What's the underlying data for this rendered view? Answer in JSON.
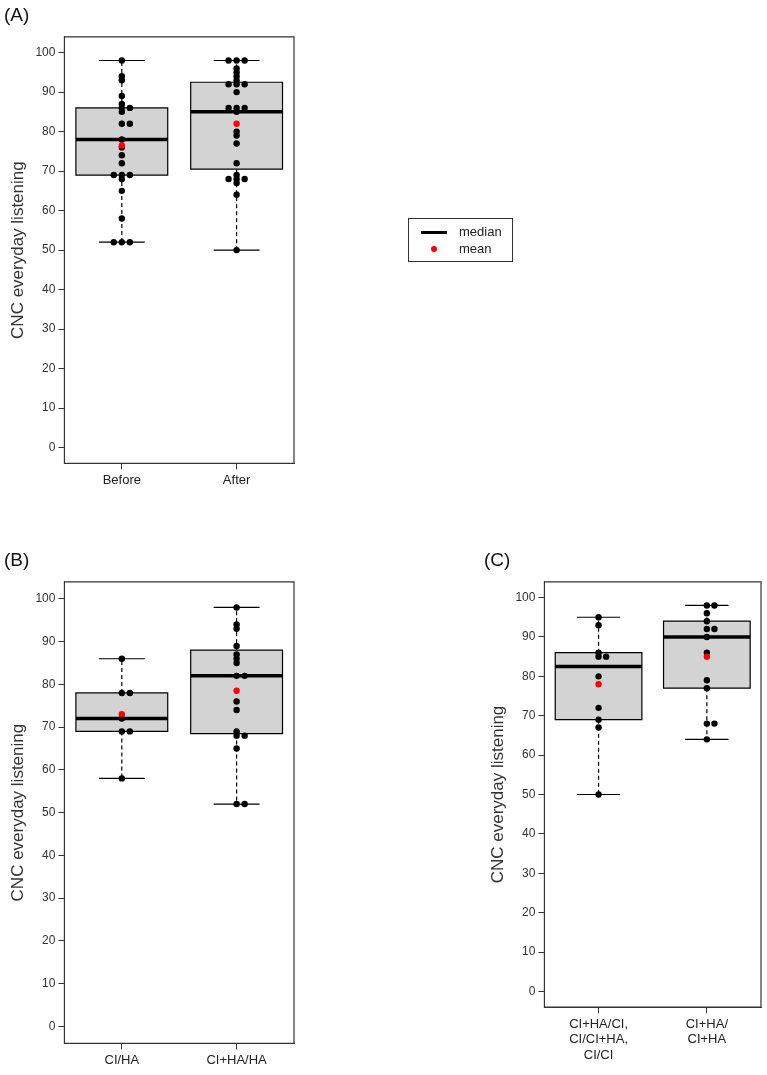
{
  "chart_data": [
    {
      "type": "box",
      "title": "(A)",
      "ylabel": "CNC everyday listening",
      "categories": [
        "Before",
        "After"
      ],
      "ylim": [
        -4,
        104
      ],
      "yticks": [
        0,
        10,
        20,
        30,
        40,
        50,
        60,
        70,
        80,
        90,
        100
      ],
      "legend": "right",
      "marker": "circle",
      "series": [
        {
          "type": "box",
          "name": "median",
          "color": "#d3d3d3",
          "boxes": [
            {
              "low": 52,
              "q1": 69,
              "median": 78,
              "q3": 86,
              "high": 98
            },
            {
              "low": 50,
              "q1": 70.5,
              "median": 85,
              "q3": 92.5,
              "high": 98
            }
          ]
        },
        {
          "type": "scatter",
          "color": "#000000",
          "x": [
            "Before",
            "Before",
            "Before",
            "Before",
            "Before",
            "Before",
            "Before",
            "Before",
            "Before",
            "Before",
            "Before",
            "Before",
            "Before",
            "Before",
            "Before",
            "Before",
            "Before",
            "Before",
            "Before",
            "Before",
            "Before",
            "Before",
            "Before",
            "After",
            "After",
            "After",
            "After",
            "After",
            "After",
            "After",
            "After",
            "After",
            "After",
            "After",
            "After",
            "After",
            "After",
            "After",
            "After",
            "After",
            "After",
            "After",
            "After",
            "After",
            "After",
            "After",
            "After",
            "After",
            "After"
          ],
          "values": [
            98,
            94,
            93,
            89,
            87,
            86,
            86,
            85,
            82,
            82,
            78,
            76,
            74,
            72,
            69,
            69,
            69,
            68,
            65,
            58,
            52,
            52,
            52,
            98,
            98,
            98,
            96,
            95,
            94,
            93,
            92,
            92,
            92,
            90,
            86,
            86,
            86,
            85,
            80,
            79,
            77,
            72,
            69,
            68,
            68,
            68,
            67,
            64,
            50
          ]
        },
        {
          "type": "scatter",
          "name": "mean",
          "color": "#ff0000",
          "x": [
            "Before",
            "After"
          ],
          "values": [
            76.5,
            82
          ]
        }
      ]
    },
    {
      "type": "box",
      "title": "(B)",
      "ylabel": "CNC everyday listening",
      "categories": [
        "CI/HA",
        "CI+HA/HA"
      ],
      "ylim": [
        -4,
        104
      ],
      "yticks": [
        0,
        10,
        20,
        30,
        40,
        50,
        60,
        70,
        80,
        90,
        100
      ],
      "marker": "circle",
      "series": [
        {
          "type": "box",
          "color": "#d3d3d3",
          "boxes": [
            {
              "low": 58,
              "q1": 69,
              "median": 72,
              "q3": 78,
              "high": 86
            },
            {
              "low": 52,
              "q1": 68.5,
              "median": 82,
              "q3": 88,
              "high": 98
            }
          ]
        },
        {
          "type": "scatter",
          "color": "#000000",
          "x": [
            "CI/HA",
            "CI/HA",
            "CI/HA",
            "CI/HA",
            "CI/HA",
            "CI/HA",
            "CI/HA",
            "CI+HA/HA",
            "CI+HA/HA",
            "CI+HA/HA",
            "CI+HA/HA",
            "CI+HA/HA",
            "CI+HA/HA",
            "CI+HA/HA",
            "CI+HA/HA",
            "CI+HA/HA",
            "CI+HA/HA",
            "CI+HA/HA",
            "CI+HA/HA",
            "CI+HA/HA",
            "CI+HA/HA",
            "CI+HA/HA",
            "CI+HA/HA",
            "CI+HA/HA"
          ],
          "values": [
            86,
            78,
            78,
            72,
            69,
            69,
            58,
            98,
            94,
            93,
            89,
            87,
            86,
            85,
            82,
            82,
            76,
            74,
            69,
            68,
            68,
            65,
            52,
            52
          ]
        },
        {
          "type": "scatter",
          "color": "#ff0000",
          "x": [
            "CI/HA",
            "CI+HA/HA"
          ],
          "values": [
            73,
            78.5
          ]
        }
      ]
    },
    {
      "type": "box",
      "title": "(C)",
      "ylabel": "CNC everyday listening",
      "categories": [
        "CI+HA/CI,\nCI/CI+HA,\nCI/CI",
        "CI+HA/\nCI+HA"
      ],
      "ylim": [
        -4,
        104
      ],
      "yticks": [
        0,
        10,
        20,
        30,
        40,
        50,
        60,
        70,
        80,
        90,
        100
      ],
      "marker": "circle",
      "series": [
        {
          "type": "box",
          "color": "#d3d3d3",
          "boxes": [
            {
              "low": 50,
              "q1": 69,
              "median": 82.5,
              "q3": 86,
              "high": 95
            },
            {
              "low": 64,
              "q1": 77,
              "median": 90,
              "q3": 94,
              "high": 98
            }
          ]
        },
        {
          "type": "scatter",
          "color": "#000000",
          "x": [
            "CI+HA/CI,\nCI/CI+HA,\nCI/CI",
            "CI+HA/CI,\nCI/CI+HA,\nCI/CI",
            "CI+HA/CI,\nCI/CI+HA,\nCI/CI",
            "CI+HA/CI,\nCI/CI+HA,\nCI/CI",
            "CI+HA/CI,\nCI/CI+HA,\nCI/CI",
            "CI+HA/CI,\nCI/CI+HA,\nCI/CI",
            "CI+HA/CI,\nCI/CI+HA,\nCI/CI",
            "CI+HA/CI,\nCI/CI+HA,\nCI/CI",
            "CI+HA/CI,\nCI/CI+HA,\nCI/CI",
            "CI+HA/CI,\nCI/CI+HA,\nCI/CI",
            "CI+HA/\nCI+HA",
            "CI+HA/\nCI+HA",
            "CI+HA/\nCI+HA",
            "CI+HA/\nCI+HA",
            "CI+HA/\nCI+HA",
            "CI+HA/\nCI+HA",
            "CI+HA/\nCI+HA",
            "CI+HA/\nCI+HA",
            "CI+HA/\nCI+HA",
            "CI+HA/\nCI+HA",
            "CI+HA/\nCI+HA",
            "CI+HA/\nCI+HA",
            "CI+HA/\nCI+HA"
          ],
          "values": [
            95,
            93,
            86,
            85,
            85,
            80,
            72,
            69,
            67,
            50,
            98,
            98,
            96,
            94,
            92,
            92,
            90,
            86,
            79,
            77,
            68,
            68,
            64
          ]
        },
        {
          "type": "scatter",
          "color": "#ff0000",
          "x": [
            "CI+HA/CI,\nCI/CI+HA,\nCI/CI",
            "CI+HA/\nCI+HA"
          ],
          "values": [
            78,
            85
          ]
        }
      ]
    }
  ]
}
